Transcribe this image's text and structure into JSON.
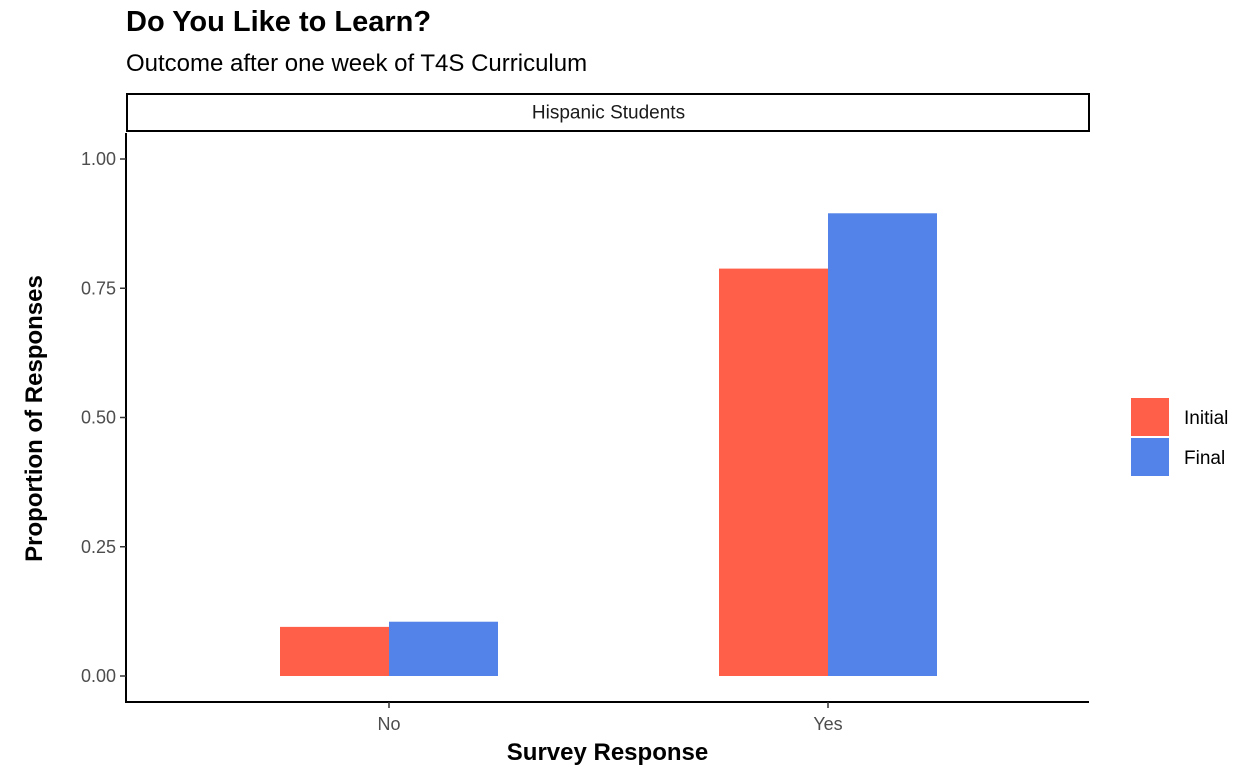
{
  "chart_data": {
    "type": "bar",
    "title": "Do You Like to Learn?",
    "subtitle": "Outcome after one week of T4S Curriculum",
    "facet_label": "Hispanic Students",
    "xlabel": "Survey Response",
    "ylabel": "Proportion of Responses",
    "categories": [
      "No",
      "Yes"
    ],
    "series": [
      {
        "name": "Initial",
        "color": "#FF5E48",
        "values": [
          0.095,
          0.788
        ]
      },
      {
        "name": "Final",
        "color": "#5383E8",
        "values": [
          0.105,
          0.895
        ]
      }
    ],
    "ylim": [
      0,
      1.05
    ],
    "y_ticks": [
      {
        "value": 0,
        "label": "0.00"
      },
      {
        "value": 0.25,
        "label": "0.25"
      },
      {
        "value": 0.5,
        "label": "0.50"
      },
      {
        "value": 0.75,
        "label": "0.75"
      },
      {
        "value": 1,
        "label": "1.00"
      }
    ],
    "grid": false,
    "legend_position": "right"
  }
}
